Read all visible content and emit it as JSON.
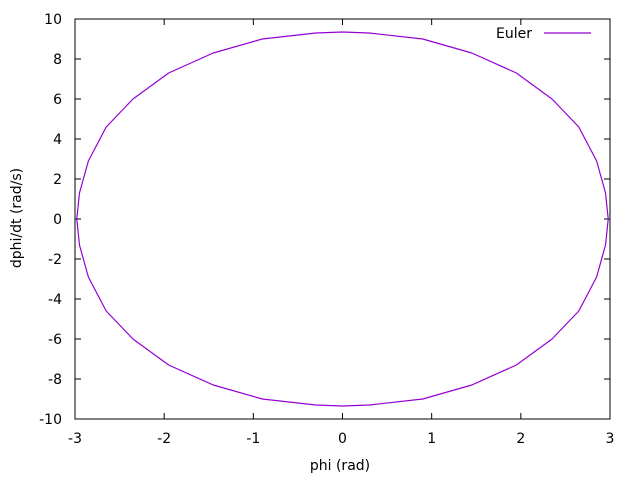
{
  "chart_data": {
    "type": "line",
    "title": "",
    "xlabel": "phi (rad)",
    "ylabel": "dphi/dt (rad/s)",
    "xlim": [
      -3,
      3
    ],
    "ylim": [
      -10,
      10
    ],
    "xticks": [
      -3,
      -2,
      -1,
      0,
      1,
      2,
      3
    ],
    "yticks": [
      -10,
      -8,
      -6,
      -4,
      -2,
      0,
      2,
      4,
      6,
      8,
      10
    ],
    "grid": false,
    "legend_position": "top-right",
    "series": [
      {
        "name": "Euler",
        "color": "#9400d3",
        "shape": "closed phase-space orbit (ellipse)",
        "phi_amplitude": 2.98,
        "dphi_dt_amplitude": 9.35,
        "x": [
          2.98,
          2.95,
          2.85,
          2.65,
          2.35,
          1.95,
          1.45,
          0.9,
          0.3,
          0.0,
          -0.3,
          -0.9,
          -1.45,
          -1.95,
          -2.35,
          -2.65,
          -2.85,
          -2.95,
          -2.98,
          -2.95,
          -2.85,
          -2.65,
          -2.35,
          -1.95,
          -1.45,
          -0.9,
          -0.3,
          0.0,
          0.3,
          0.9,
          1.45,
          1.95,
          2.35,
          2.65,
          2.85,
          2.95,
          2.98
        ],
        "y": [
          0.0,
          1.3,
          2.9,
          4.6,
          6.0,
          7.3,
          8.3,
          9.0,
          9.3,
          9.35,
          9.3,
          9.0,
          8.3,
          7.3,
          6.0,
          4.6,
          2.9,
          1.3,
          0.0,
          -1.3,
          -2.9,
          -4.6,
          -6.0,
          -7.3,
          -8.3,
          -9.0,
          -9.3,
          -9.35,
          -9.3,
          -9.0,
          -8.3,
          -7.3,
          -6.0,
          -4.6,
          -2.9,
          -1.3,
          0.0
        ]
      }
    ]
  }
}
